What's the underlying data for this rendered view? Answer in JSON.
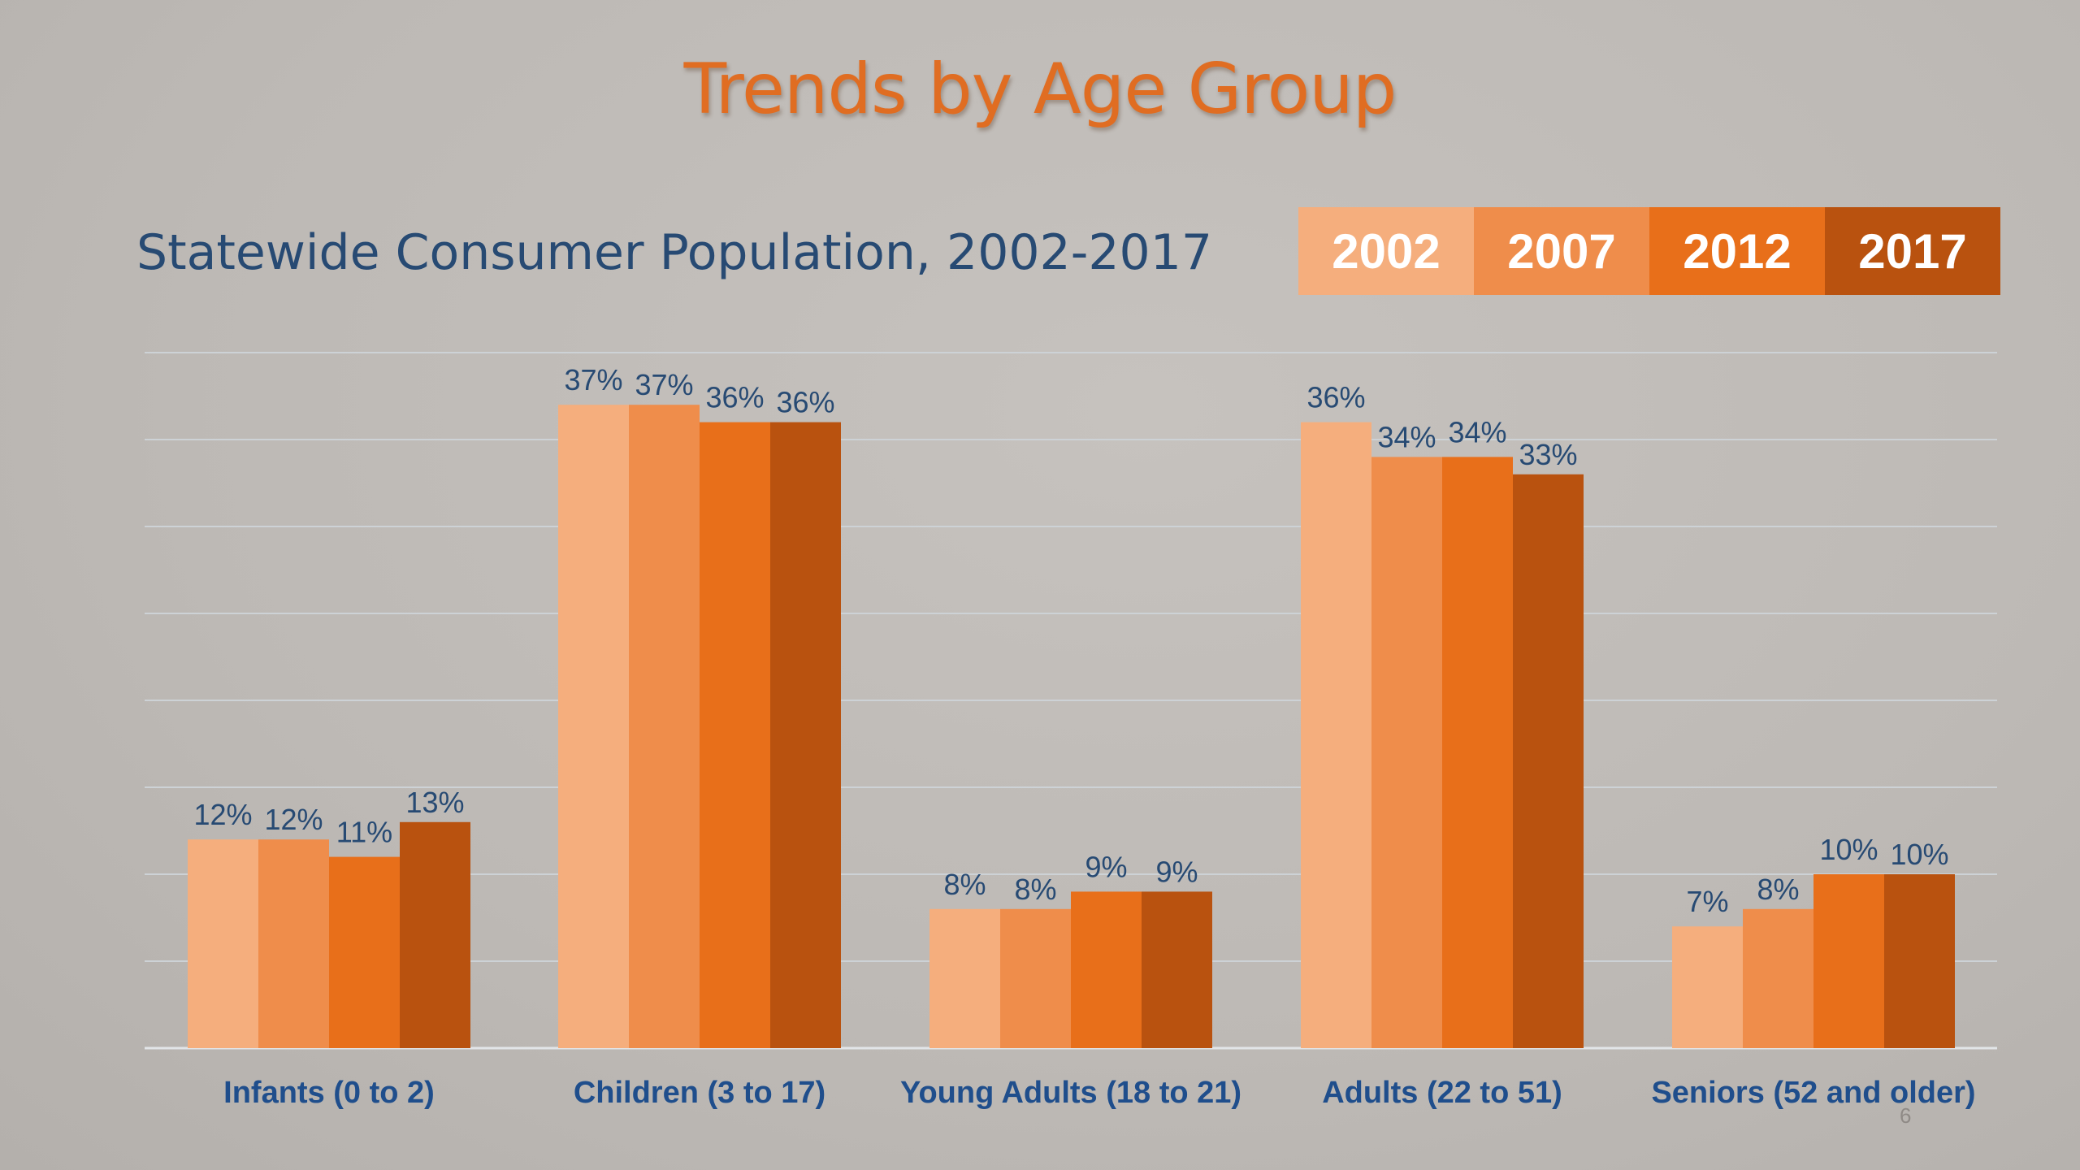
{
  "slide": {
    "title": "Trends by Age Group",
    "page_number": "6"
  },
  "legend": {
    "items": [
      {
        "label": "2002",
        "color": "#f5ae7d"
      },
      {
        "label": "2007",
        "color": "#ef8d4b"
      },
      {
        "label": "2012",
        "color": "#e86f1a"
      },
      {
        "label": "2017",
        "color": "#b9520f"
      }
    ]
  },
  "chart_data": {
    "type": "bar",
    "title": "Statewide Consumer Population, 2002-2017",
    "categories": [
      "Infants (0 to 2)",
      "Children (3 to 17)",
      "Young Adults (18 to 21)",
      "Adults (22 to 51)",
      "Seniors (52 and older)"
    ],
    "series": [
      {
        "name": "2002",
        "color": "#f5ae7d",
        "values": [
          12,
          37,
          8,
          36,
          7
        ],
        "labels": [
          "12%",
          "37%",
          "8%",
          "36%",
          "7%"
        ]
      },
      {
        "name": "2007",
        "color": "#ef8d4b",
        "values": [
          12,
          37,
          8,
          34,
          8
        ],
        "labels": [
          "12%",
          "37%",
          "8%",
          "34%",
          "8%"
        ]
      },
      {
        "name": "2012",
        "color": "#e86f1a",
        "values": [
          11,
          36,
          9,
          34,
          10
        ],
        "labels": [
          "11%",
          "36%",
          "9%",
          "34%",
          "10%"
        ]
      },
      {
        "name": "2017",
        "color": "#b9520f",
        "values": [
          13,
          36,
          9,
          33,
          10
        ],
        "labels": [
          "13%",
          "36%",
          "9%",
          "33%",
          "10%"
        ]
      }
    ],
    "ylim": [
      0,
      40
    ],
    "grid": true,
    "legend_position": "top-right",
    "value_label_color": "#274a73",
    "category_label_color": "#1f4e8c"
  }
}
